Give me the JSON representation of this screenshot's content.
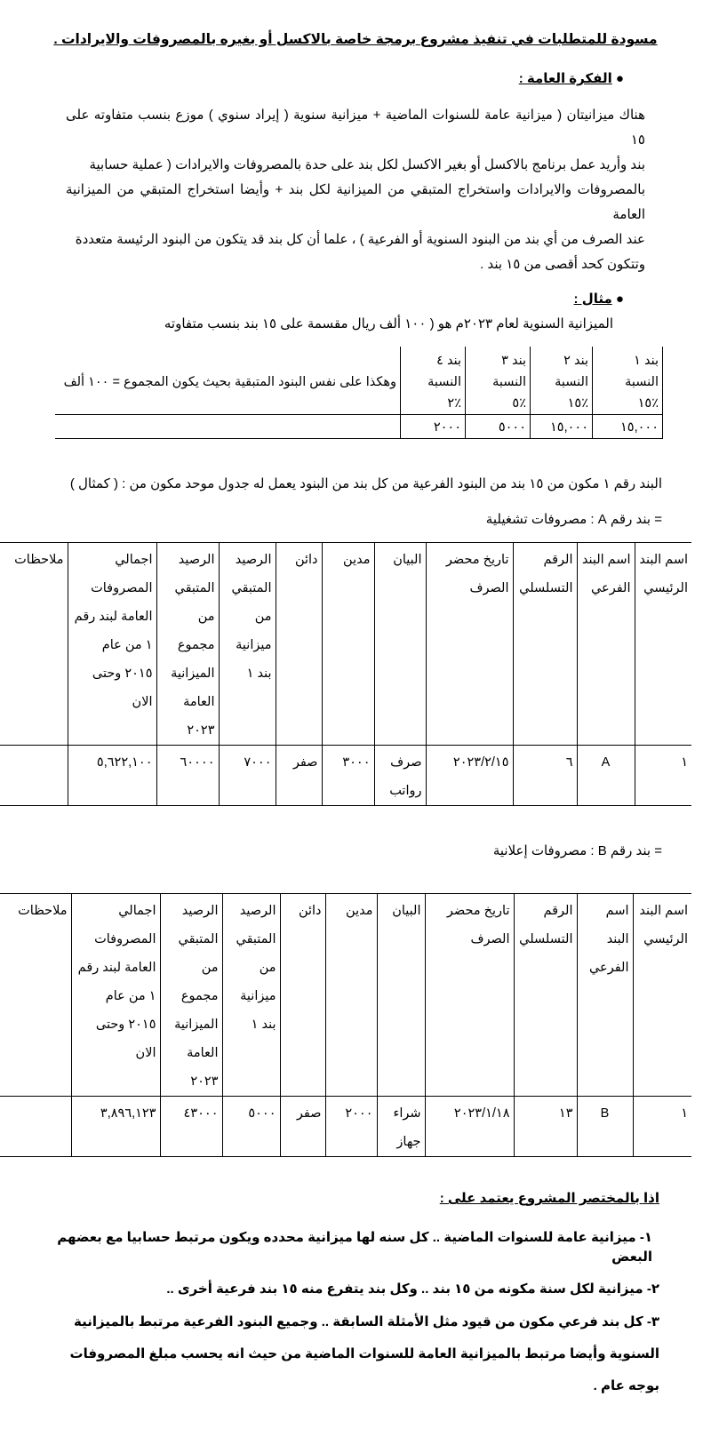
{
  "title": "مسودة للمتطلبات في تنفيذ مشروع برمجة خاصة بالاكسل أو بغيره بالمصروفات والايرادات .",
  "general_idea": {
    "heading": "الفكرة العامة :",
    "lines": [
      "هناك ميزانيتان ( ميزانية عامة للسنوات الماضية + ميزانية سنوية ( إيراد سنوي ) موزع بنسب متفاوته على ١٥",
      "بند  وأريد عمل برنامج بالاكسل أو بغير الاكسل لكل بند على حدة بالمصروفات والايرادات ( عملية حسابية",
      "بالمصروفات والايرادات واستخراج المتبقي من الميزانية لكل بند + وأيضا استخراج المتبقي من الميزانية العامة",
      "عند الصرف من أي بند من البنود السنوية أو الفرعية ) ، علما أن كل بند قد يتكون من البنود الرئيسة متعددة",
      "وتتكون كحد أقصى من ١٥ بند ."
    ]
  },
  "example": {
    "heading": "مثال :",
    "intro": "الميزانية السنوية لعام ٢٠٢٣م هو ( ١٠٠ ألف ريال مقسمة على ١٥ بند بنسب متفاوته",
    "items": [
      {
        "name": "بند ١",
        "label": "النسبة",
        "percent": "٪١٥",
        "amount": "١٥,٠٠٠"
      },
      {
        "name": "بند ٢",
        "label": "النسبة",
        "percent": "٪١٥",
        "amount": "١٥,٠٠٠"
      },
      {
        "name": "بند ٣",
        "label": "النسبة",
        "percent": "٪٥",
        "amount": "٥٠٠٠"
      },
      {
        "name": "بند ٤",
        "label": "النسبة",
        "percent": "٪٢",
        "amount": "٢٠٠٠"
      }
    ],
    "note": "وهكذا على نفس البنود المتبقية بحيث يكون المجموع = ١٠٠ ألف"
  },
  "item1_intro": "البند رقم ١ مكون من ١٥ بند من البنود الفرعية من كل بند من البنود يعمل له جدول موحد مكون من : ( كمثال )",
  "columns": [
    "اسم البند الرئيسي",
    "اسم البند الفرعي",
    "الرقم التسلسلي",
    "تاريخ محضر الصرف",
    "البيان",
    "مدين",
    "دائن",
    "الرصيد المتبقي من ميزانية بند ١",
    "الرصيد المتبقي من مجموع الميزانية العامة ٢٠٢٣",
    "اجمالي المصروفات العامة لبند رقم ١ من عام ٢٠١٥ وحتى الان",
    "ملاحظات"
  ],
  "table_a": {
    "caption": "= بند رقم A : مصروفات تشغيلية",
    "row": [
      "١",
      "A",
      "٦",
      "٢٠٢٣/٢/١٥",
      "صرف رواتب",
      "٣٠٠٠",
      "صفر",
      "٧٠٠٠",
      "٦٠٠٠٠",
      "٥,٦٢٢,١٠٠",
      ""
    ]
  },
  "table_b": {
    "caption": "= بند رقم B : مصروفات إعلانية",
    "row": [
      "١",
      "B",
      "١٣",
      "٢٠٢٣/١/١٨",
      "شراء جهاز",
      "٢٠٠٠",
      "صفر",
      "٥٠٠٠",
      "٤٣٠٠٠",
      "٣,٨٩٦,١٢٣",
      ""
    ]
  },
  "summary": {
    "heading": "اذا بالمختصر  المشروع يعتمد على :",
    "points": [
      "١- ميزانية عامة للسنوات الماضية .. كل سنه لها ميزانية محدده ويكون مرتبط حسابيا مع بعضهم البعض",
      "٢- ميزانية لكل سنة مكونه من ١٥ بند .. وكل بند يتفرع منه ١٥ بند فرعية أخرى ..",
      "٣- كل بند فرعي مكون من قيود مثل الأمثلة السابقة .. وجميع البنود الفرعية مرتبط بالميزانية السنوية وأيضا مرتبط بالميزانية العامة للسنوات الماضية من حيث انه يحسب مبلغ المصروفات بوجه عام ."
    ]
  }
}
